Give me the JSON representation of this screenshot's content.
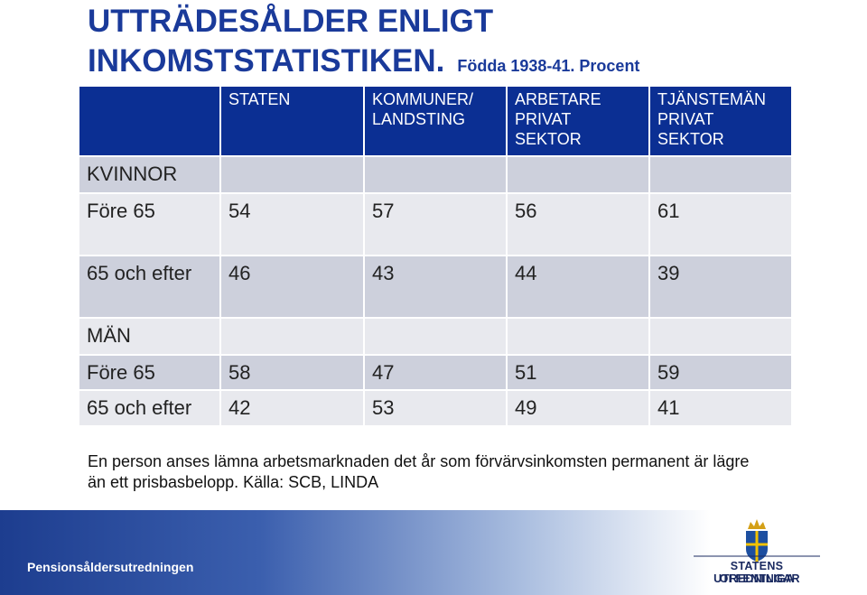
{
  "title": {
    "lines": [
      "UTTRÄDESÅLDER ENLIGT",
      "INKOMSTSTATISTIKEN."
    ],
    "subtitle": "Födda 1938-41. Procent"
  },
  "table": {
    "header": [
      [
        "STATEN"
      ],
      [
        "KOMMUNER/",
        "LANDSTING"
      ],
      [
        "ARBETARE",
        "PRIVAT",
        "SEKTOR"
      ],
      [
        "TJÄNSTEMÄN",
        "PRIVAT",
        "SEKTOR"
      ]
    ],
    "rows": [
      [
        "KVINNOR"
      ],
      [
        "Före 65",
        54,
        57,
        56,
        61
      ],
      [
        "65 och efter",
        46,
        43,
        44,
        39
      ],
      [
        "MÄN"
      ],
      [
        "Före 65",
        58,
        47,
        51,
        59
      ],
      [
        "65 och efter",
        42,
        53,
        49,
        41
      ]
    ]
  },
  "footnote": {
    "lines": [
      "En person anses lämna arbetsmarknaden det år som förvärvsinkomsten permanent är lägre",
      "än ett prisbasbelopp. Källa: SCB, LINDA"
    ]
  },
  "footer": {
    "name": "Pensionsåldersutredningen",
    "logo": [
      "STATENS OFFENTLIGA",
      "UTREDNINGAR"
    ]
  }
}
